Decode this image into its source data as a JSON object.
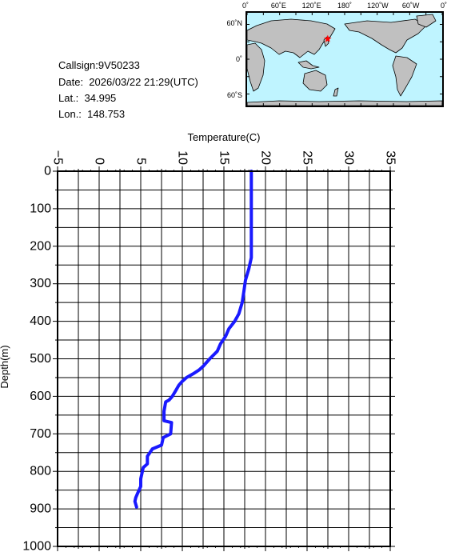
{
  "info": {
    "callsign": "Callsign:9V50233",
    "date": "Date:  2026/03/22 21:29(UTC)",
    "lat": "Lat.:  34.995",
    "lon": "Lon.:  148.753"
  },
  "map": {
    "lon_labels": [
      "0˚",
      "60˚E",
      "120˚E",
      "180˚",
      "120˚W",
      "60˚W",
      "0˚"
    ],
    "lat_labels": [
      "60˚N",
      "0˚",
      "60˚S"
    ],
    "station": {
      "lat": 34.995,
      "lon": 148.753
    },
    "colors": {
      "ocean": "#bff4ff",
      "land": "#c0c0c0",
      "marker": "#ff0000"
    }
  },
  "chart_data": {
    "type": "line",
    "title": "",
    "xlabel": "Temperature(C)",
    "ylabel": "Depth(m)",
    "xlim": [
      -5,
      35
    ],
    "ylim": [
      0,
      1000
    ],
    "y_inverted": true,
    "x_axis_position": "top",
    "x_ticks": [
      -5,
      0,
      5,
      10,
      15,
      20,
      25,
      30,
      35
    ],
    "x_tick_labels": [
      "−5",
      "0",
      "5",
      "10",
      "15",
      "20",
      "25",
      "30",
      "35"
    ],
    "y_ticks": [
      0,
      100,
      200,
      300,
      400,
      500,
      600,
      700,
      800,
      900,
      1000
    ],
    "y_tick_labels": [
      "0",
      "100",
      "200",
      "300",
      "400",
      "500",
      "600",
      "700",
      "800",
      "900",
      "1000"
    ],
    "grid": true,
    "series_color": "#1a1aff",
    "series": [
      {
        "x": [
          18.3,
          18.3,
          18.3,
          18.3,
          18.0,
          17.6,
          17.4,
          17.2,
          16.8,
          16.3,
          15.6,
          15.2,
          14.6,
          14.2,
          13.3,
          12.5,
          12.0,
          11.3,
          10.5,
          10.0,
          9.6,
          9.2,
          8.8,
          8.4,
          8.0,
          7.8,
          7.8,
          8.7,
          8.6,
          7.7,
          7.5,
          6.4,
          5.8,
          5.8,
          5.3,
          5.0,
          5.0,
          4.6,
          4.4,
          4.3,
          4.5
        ],
        "y": [
          0,
          100,
          200,
          230,
          260,
          290,
          320,
          350,
          380,
          400,
          420,
          440,
          460,
          480,
          500,
          520,
          530,
          540,
          550,
          560,
          570,
          585,
          600,
          610,
          615,
          640,
          665,
          670,
          700,
          710,
          730,
          740,
          760,
          780,
          790,
          820,
          840,
          860,
          870,
          880,
          895
        ]
      }
    ]
  }
}
